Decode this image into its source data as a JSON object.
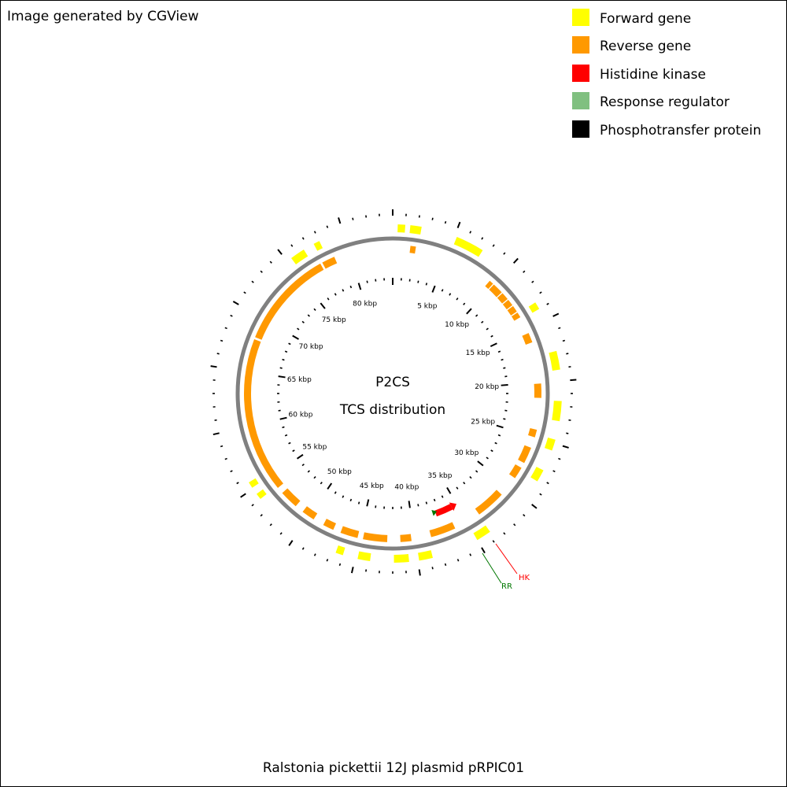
{
  "header": {
    "text": "Image generated by CGView"
  },
  "footer": {
    "text": "Ralstonia pickettii 12J plasmid pRPIC01"
  },
  "center": {
    "line1": "P2CS",
    "line2": "TCS distribution"
  },
  "legend": [
    {
      "label": "Forward gene",
      "color": "#ffff00"
    },
    {
      "label": "Reverse gene",
      "color": "#ff9900"
    },
    {
      "label": "Histidine kinase",
      "color": "#ff0000"
    },
    {
      "label": "Response regulator",
      "color": "#80c080"
    },
    {
      "label": "Phosphotransfer protein",
      "color": "#000000"
    }
  ],
  "tick_labels": [
    "5 kbp",
    "10 kbp",
    "15 kbp",
    "20 kbp",
    "25 kbp",
    "30 kbp",
    "35 kbp",
    "40 kbp",
    "45 kbp",
    "50 kbp",
    "55 kbp",
    "60 kbp",
    "65 kbp",
    "70 kbp",
    "75 kbp",
    "80 kbp"
  ],
  "callouts": [
    {
      "label": "HK",
      "color": "#ff0000"
    },
    {
      "label": "RR",
      "color": "#007700"
    }
  ],
  "map": {
    "genome_kbp": 84,
    "forward_genes": [
      [
        0.4,
        1.0
      ],
      [
        1.4,
        2.3
      ],
      [
        5.2,
        7.5
      ],
      [
        13.4,
        14.0
      ],
      [
        17.6,
        19.1
      ],
      [
        21.6,
        23.2
      ],
      [
        24.7,
        25.6
      ],
      [
        27.3,
        28.3
      ],
      [
        33.8,
        35.0
      ],
      [
        38.8,
        39.9
      ],
      [
        40.7,
        41.9
      ],
      [
        43.8,
        44.8
      ],
      [
        46.0,
        46.6
      ],
      [
        54.0,
        54.5
      ],
      [
        55.1,
        55.6
      ],
      [
        75.4,
        76.6
      ],
      [
        77.5,
        78.0
      ]
    ],
    "reverse_genes": [
      [
        1.6,
        2.1
      ],
      [
        9.5,
        9.9
      ],
      [
        10.0,
        11.0
      ],
      [
        11.1,
        11.8
      ],
      [
        11.9,
        12.5
      ],
      [
        12.6,
        13.2
      ],
      [
        13.3,
        13.8
      ],
      [
        15.4,
        16.3
      ],
      [
        20.1,
        21.4
      ],
      [
        24.3,
        25.0
      ],
      [
        26.0,
        27.5
      ],
      [
        28.0,
        29.1
      ],
      [
        31.0,
        33.7
      ],
      [
        36.2,
        38.5
      ],
      [
        40.3,
        41.3
      ],
      [
        42.5,
        44.7
      ],
      [
        45.2,
        46.8
      ],
      [
        47.5,
        48.5
      ],
      [
        49.5,
        50.7
      ],
      [
        51.5,
        53.2
      ],
      [
        53.8,
        68.0
      ],
      [
        68.2,
        77.2
      ],
      [
        77.4,
        78.6
      ]
    ],
    "histidine_kinase": [
      35.3,
      37.4
    ],
    "response_regulator": [
      37.2,
      37.7
    ]
  }
}
